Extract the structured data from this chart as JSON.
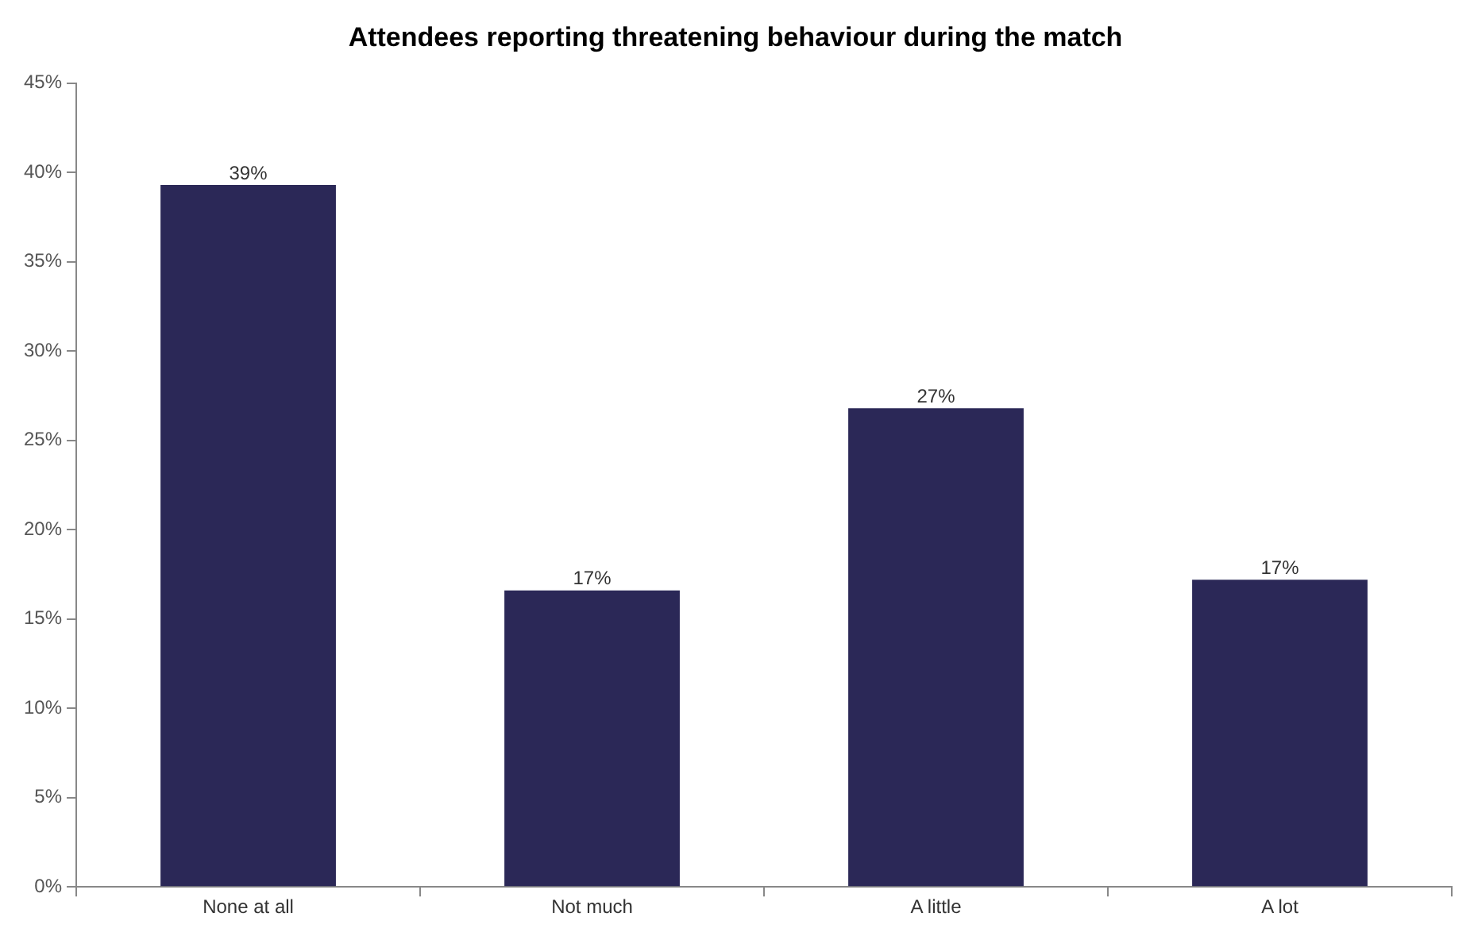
{
  "chart_data": {
    "type": "bar",
    "title": "Attendees reporting threatening behaviour during the match",
    "categories": [
      "None at all",
      "Not much",
      "A little",
      "A lot"
    ],
    "values": [
      39.3,
      16.6,
      26.8,
      17.2
    ],
    "value_labels": [
      "39%",
      "17%",
      "27%",
      "17%"
    ],
    "color": "#2b2857",
    "ylim": [
      0,
      45
    ],
    "yticks": [
      {
        "value": 0,
        "label": "0%"
      },
      {
        "value": 5,
        "label": "5%"
      },
      {
        "value": 10,
        "label": "10%"
      },
      {
        "value": 15,
        "label": "15%"
      },
      {
        "value": 20,
        "label": "20%"
      },
      {
        "value": 25,
        "label": "25%"
      },
      {
        "value": 30,
        "label": "30%"
      },
      {
        "value": 35,
        "label": "35%"
      },
      {
        "value": 40,
        "label": "40%"
      },
      {
        "value": 45,
        "label": "45%"
      }
    ],
    "grid": false,
    "legend": false
  }
}
